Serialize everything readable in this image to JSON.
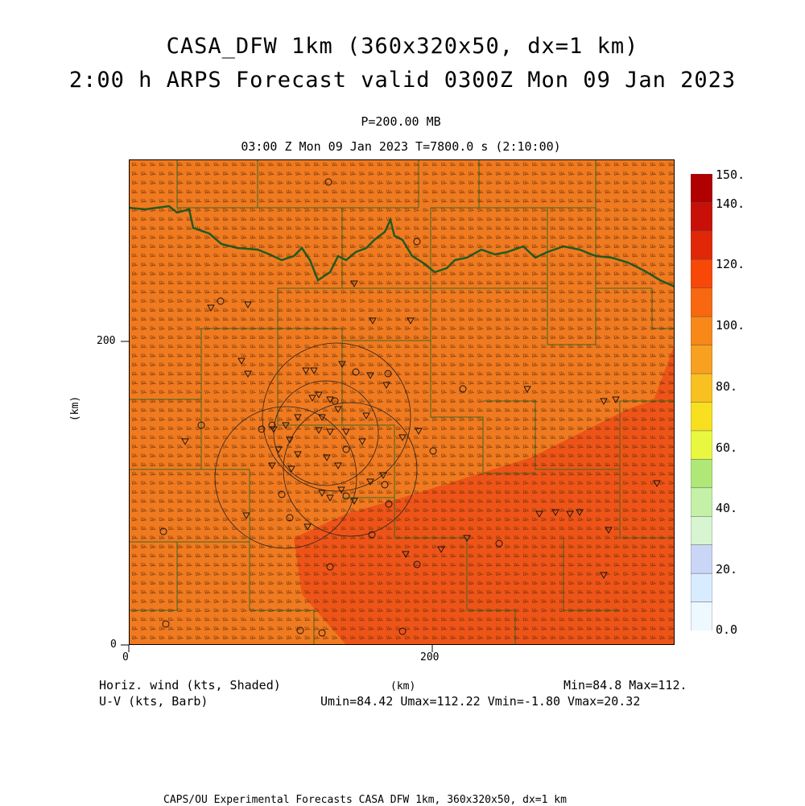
{
  "header": {
    "title_line1": "CASA_DFW 1km (360x320x50, dx=1 km)",
    "title_line2": "2:00 h ARPS Forecast valid 0300Z Mon 09 Jan 2023",
    "pressure_level": "P=200.00 MB",
    "valid_time": "03:00 Z Mon 09 Jan 2023   T=7800.0 s (2:10:00)"
  },
  "axes": {
    "x_ticks": [
      "0",
      "200"
    ],
    "y_ticks": [
      "0",
      "200"
    ],
    "x_label": "(km)",
    "y_label": "(km)",
    "x_range_km": [
      0,
      360
    ],
    "y_range_km": [
      0,
      320
    ]
  },
  "legend": {
    "field_shaded": "Horiz. wind (kts, Shaded)",
    "field_barb": "U-V (kts, Barb)",
    "minmax": "Min=84.8 Max=112.",
    "component_stats": "Umin=84.42 Umax=112.22 Vmin=-1.80 Vmax=20.32"
  },
  "colorbar": {
    "labels": [
      "150.",
      "140.",
      "120.",
      "100.",
      "80.",
      "60.",
      "40.",
      "20.",
      "0.0"
    ],
    "colors": [
      "#eef8ff",
      "#d8ecff",
      "#c9d6f5",
      "#d6f5d0",
      "#c4f0a8",
      "#b0e878",
      "#e8f840",
      "#f8e020",
      "#f8c020",
      "#f8a020",
      "#f88818",
      "#f86810",
      "#f84808",
      "#e02808",
      "#c81008",
      "#b00000"
    ],
    "field_color_main": "#f07a20",
    "field_color_high": "#ee5418"
  },
  "footer": {
    "credit": "CAPS/OU Experimental Forecasts  CASA DFW 1km, 360x320x50, dx=1 km"
  }
}
